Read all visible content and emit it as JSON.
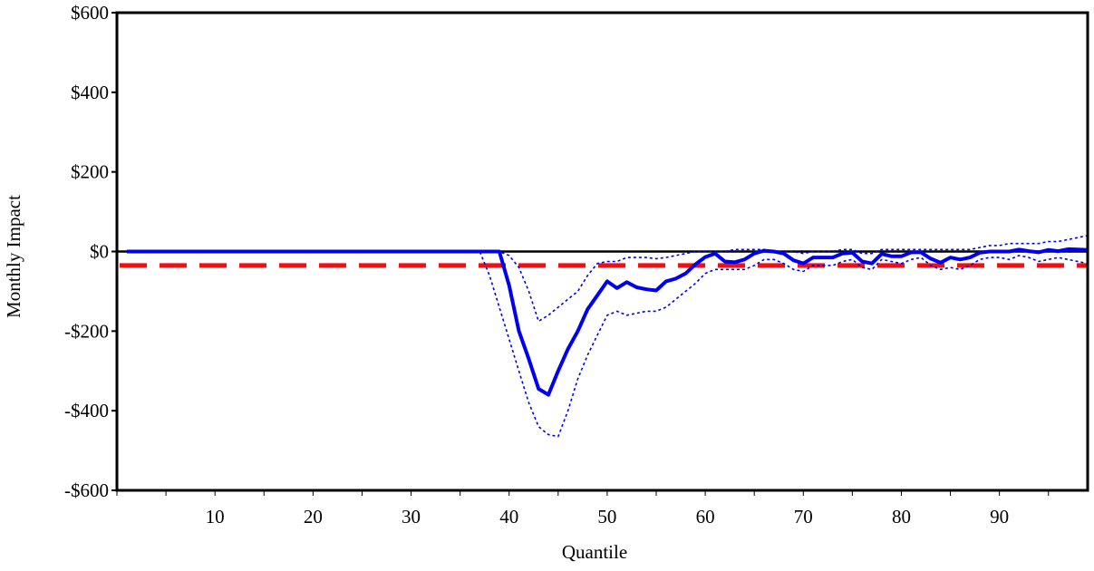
{
  "chart_data": {
    "type": "line",
    "xlabel": "Quantile",
    "ylabel": "Monthly Impact",
    "xlim": [
      0,
      99
    ],
    "ylim": [
      -600,
      600
    ],
    "x_ticks": [
      10,
      20,
      30,
      40,
      50,
      60,
      70,
      80,
      90
    ],
    "y_ticks": [
      {
        "value": 600,
        "label": "$600"
      },
      {
        "value": 400,
        "label": "$400"
      },
      {
        "value": 200,
        "label": "$200"
      },
      {
        "value": 0,
        "label": "$0"
      },
      {
        "value": -200,
        "label": "-$200"
      },
      {
        "value": -400,
        "label": "-$400"
      },
      {
        "value": -600,
        "label": "-$600"
      }
    ],
    "grid": false,
    "legend": "none",
    "zero_line": 0,
    "reference_line": {
      "value": -35,
      "color": "#ee1111",
      "style": "dashed"
    },
    "series": [
      {
        "role": "estimate",
        "color": "#0000ee",
        "style": "solid",
        "points": [
          [
            1,
            0
          ],
          [
            5,
            0
          ],
          [
            10,
            0
          ],
          [
            15,
            0
          ],
          [
            20,
            0
          ],
          [
            25,
            0
          ],
          [
            30,
            0
          ],
          [
            35,
            0
          ],
          [
            38,
            0
          ],
          [
            39,
            0
          ],
          [
            40,
            -85
          ],
          [
            41,
            -200
          ],
          [
            42,
            -270
          ],
          [
            43,
            -345
          ],
          [
            44,
            -360
          ],
          [
            45,
            -300
          ],
          [
            46,
            -245
          ],
          [
            47,
            -200
          ],
          [
            48,
            -145
          ],
          [
            49,
            -110
          ],
          [
            50,
            -75
          ],
          [
            51,
            -92
          ],
          [
            52,
            -77
          ],
          [
            53,
            -90
          ],
          [
            54,
            -95
          ],
          [
            55,
            -98
          ],
          [
            56,
            -75
          ],
          [
            57,
            -68
          ],
          [
            58,
            -55
          ],
          [
            59,
            -32
          ],
          [
            60,
            -14
          ],
          [
            61,
            -5
          ],
          [
            62,
            -25
          ],
          [
            63,
            -27
          ],
          [
            64,
            -20
          ],
          [
            65,
            -5
          ],
          [
            66,
            2
          ],
          [
            67,
            0
          ],
          [
            68,
            -5
          ],
          [
            69,
            -22
          ],
          [
            70,
            -30
          ],
          [
            71,
            -15
          ],
          [
            72,
            -15
          ],
          [
            73,
            -15
          ],
          [
            74,
            -5
          ],
          [
            75,
            -3
          ],
          [
            76,
            -25
          ],
          [
            77,
            -30
          ],
          [
            78,
            -6
          ],
          [
            79,
            -12
          ],
          [
            80,
            -12
          ],
          [
            81,
            -2
          ],
          [
            82,
            -2
          ],
          [
            83,
            -18
          ],
          [
            84,
            -28
          ],
          [
            85,
            -15
          ],
          [
            86,
            -20
          ],
          [
            87,
            -15
          ],
          [
            88,
            -3
          ],
          [
            89,
            0
          ],
          [
            90,
            0
          ],
          [
            91,
            0
          ],
          [
            92,
            5
          ],
          [
            93,
            1
          ],
          [
            94,
            -2
          ],
          [
            95,
            4
          ],
          [
            96,
            1
          ],
          [
            97,
            6
          ],
          [
            98,
            5
          ],
          [
            99,
            4
          ]
        ]
      },
      {
        "role": "upper bound",
        "color": "#0000ee",
        "style": "dotted",
        "points": [
          [
            1,
            0
          ],
          [
            5,
            0
          ],
          [
            10,
            0
          ],
          [
            15,
            0
          ],
          [
            20,
            0
          ],
          [
            25,
            0
          ],
          [
            30,
            0
          ],
          [
            35,
            0
          ],
          [
            38,
            0
          ],
          [
            39,
            0
          ],
          [
            40,
            -10
          ],
          [
            41,
            -40
          ],
          [
            42,
            -100
          ],
          [
            43,
            -175
          ],
          [
            44,
            -160
          ],
          [
            45,
            -140
          ],
          [
            46,
            -120
          ],
          [
            47,
            -100
          ],
          [
            48,
            -60
          ],
          [
            49,
            -30
          ],
          [
            50,
            -25
          ],
          [
            51,
            -25
          ],
          [
            52,
            -15
          ],
          [
            53,
            -15
          ],
          [
            54,
            -15
          ],
          [
            55,
            -18
          ],
          [
            56,
            -15
          ],
          [
            57,
            -10
          ],
          [
            58,
            -5
          ],
          [
            59,
            0
          ],
          [
            60,
            0
          ],
          [
            61,
            0
          ],
          [
            62,
            0
          ],
          [
            63,
            5
          ],
          [
            64,
            5
          ],
          [
            65,
            5
          ],
          [
            66,
            5
          ],
          [
            67,
            0
          ],
          [
            68,
            0
          ],
          [
            69,
            0
          ],
          [
            70,
            -5
          ],
          [
            71,
            0
          ],
          [
            72,
            0
          ],
          [
            73,
            0
          ],
          [
            74,
            5
          ],
          [
            75,
            5
          ],
          [
            76,
            -5
          ],
          [
            77,
            -5
          ],
          [
            78,
            5
          ],
          [
            79,
            5
          ],
          [
            80,
            5
          ],
          [
            81,
            5
          ],
          [
            82,
            5
          ],
          [
            83,
            5
          ],
          [
            84,
            5
          ],
          [
            85,
            5
          ],
          [
            86,
            5
          ],
          [
            87,
            5
          ],
          [
            88,
            10
          ],
          [
            89,
            15
          ],
          [
            90,
            15
          ],
          [
            91,
            20
          ],
          [
            92,
            20
          ],
          [
            93,
            20
          ],
          [
            94,
            20
          ],
          [
            95,
            25
          ],
          [
            96,
            25
          ],
          [
            97,
            30
          ],
          [
            98,
            35
          ],
          [
            99,
            40
          ]
        ]
      },
      {
        "role": "lower bound",
        "color": "#0000ee",
        "style": "dotted",
        "points": [
          [
            1,
            0
          ],
          [
            5,
            0
          ],
          [
            10,
            0
          ],
          [
            15,
            0
          ],
          [
            20,
            0
          ],
          [
            25,
            0
          ],
          [
            30,
            0
          ],
          [
            35,
            0
          ],
          [
            37,
            0
          ],
          [
            38,
            -60
          ],
          [
            39,
            -140
          ],
          [
            40,
            -220
          ],
          [
            41,
            -300
          ],
          [
            42,
            -380
          ],
          [
            43,
            -440
          ],
          [
            44,
            -460
          ],
          [
            45,
            -465
          ],
          [
            46,
            -400
          ],
          [
            47,
            -320
          ],
          [
            48,
            -260
          ],
          [
            49,
            -210
          ],
          [
            50,
            -160
          ],
          [
            51,
            -150
          ],
          [
            52,
            -160
          ],
          [
            53,
            -155
          ],
          [
            54,
            -150
          ],
          [
            55,
            -150
          ],
          [
            56,
            -140
          ],
          [
            57,
            -120
          ],
          [
            58,
            -100
          ],
          [
            59,
            -80
          ],
          [
            60,
            -55
          ],
          [
            61,
            -45
          ],
          [
            62,
            -45
          ],
          [
            63,
            -45
          ],
          [
            64,
            -45
          ],
          [
            65,
            -35
          ],
          [
            66,
            -20
          ],
          [
            67,
            -20
          ],
          [
            68,
            -30
          ],
          [
            69,
            -45
          ],
          [
            70,
            -50
          ],
          [
            71,
            -35
          ],
          [
            72,
            -35
          ],
          [
            73,
            -35
          ],
          [
            74,
            -25
          ],
          [
            75,
            -20
          ],
          [
            76,
            -40
          ],
          [
            77,
            -45
          ],
          [
            78,
            -20
          ],
          [
            79,
            -25
          ],
          [
            80,
            -30
          ],
          [
            81,
            -20
          ],
          [
            82,
            -15
          ],
          [
            83,
            -35
          ],
          [
            84,
            -45
          ],
          [
            85,
            -40
          ],
          [
            86,
            -45
          ],
          [
            87,
            -35
          ],
          [
            88,
            -20
          ],
          [
            89,
            -15
          ],
          [
            90,
            -15
          ],
          [
            91,
            -20
          ],
          [
            92,
            -10
          ],
          [
            93,
            -15
          ],
          [
            94,
            -25
          ],
          [
            95,
            -20
          ],
          [
            96,
            -15
          ],
          [
            97,
            -20
          ],
          [
            98,
            -25
          ],
          [
            99,
            -30
          ]
        ]
      }
    ]
  }
}
